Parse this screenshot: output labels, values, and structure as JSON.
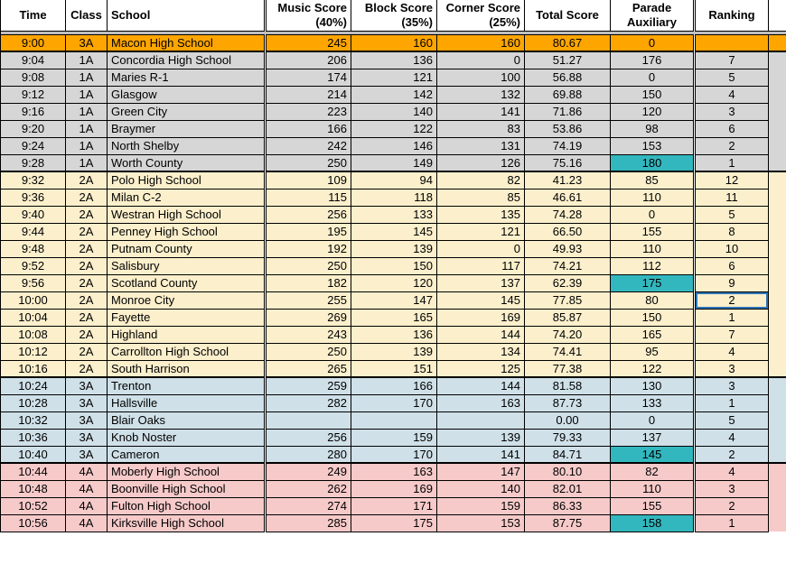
{
  "colors": {
    "groups": {
      "highlight": "#FFA500",
      "1A": "#D6D6D6",
      "2A": "#FBEFCC",
      "3A": "#CFE0E8",
      "4A": "#F7CACA"
    },
    "parade_highlight_teal": "#33B7BE",
    "spacer_gray": "#BFBFBF",
    "selection_blue": "#2E75B6",
    "grid_line": "#000000"
  },
  "table": {
    "columns": [
      {
        "key": "time",
        "label": "Time"
      },
      {
        "key": "class",
        "label": "Class"
      },
      {
        "key": "school",
        "label": "School"
      },
      {
        "key": "music",
        "label": "Music Score\n(40%)"
      },
      {
        "key": "block",
        "label": "Block Score\n(35%)"
      },
      {
        "key": "corner",
        "label": "Corner Score\n(25%)"
      },
      {
        "key": "total",
        "label": "Total Score"
      },
      {
        "key": "parade",
        "label": "Parade Auxiliary"
      },
      {
        "key": "ranking",
        "label": "Ranking"
      },
      {
        "key": "filler",
        "label": ""
      }
    ],
    "rows": [
      {
        "time": "9:00",
        "class": "3A",
        "school": "Macon High School",
        "music": "245",
        "block": "160",
        "corner": "160",
        "total": "80.67",
        "parade": "0",
        "ranking": "",
        "group": "highlight",
        "section_end": true
      },
      {
        "time": "9:04",
        "class": "1A",
        "school": "Concordia High School",
        "music": "206",
        "block": "136",
        "corner": "0",
        "total": "51.27",
        "parade": "176",
        "ranking": "7",
        "group": "1A"
      },
      {
        "time": "9:08",
        "class": "1A",
        "school": "Maries R-1",
        "music": "174",
        "block": "121",
        "corner": "100",
        "total": "56.88",
        "parade": "0",
        "ranking": "5",
        "group": "1A"
      },
      {
        "time": "9:12",
        "class": "1A",
        "school": "Glasgow",
        "music": "214",
        "block": "142",
        "corner": "132",
        "total": "69.88",
        "parade": "150",
        "ranking": "4",
        "group": "1A"
      },
      {
        "time": "9:16",
        "class": "1A",
        "school": "Green City",
        "music": "223",
        "block": "140",
        "corner": "141",
        "total": "71.86",
        "parade": "120",
        "ranking": "3",
        "group": "1A"
      },
      {
        "time": "9:20",
        "class": "1A",
        "school": "Braymer",
        "music": "166",
        "block": "122",
        "corner": "83",
        "total": "53.86",
        "parade": "98",
        "ranking": "6",
        "group": "1A"
      },
      {
        "time": "9:24",
        "class": "1A",
        "school": "North Shelby",
        "music": "242",
        "block": "146",
        "corner": "131",
        "total": "74.19",
        "parade": "153",
        "ranking": "2",
        "group": "1A"
      },
      {
        "time": "9:28",
        "class": "1A",
        "school": "Worth County",
        "music": "250",
        "block": "149",
        "corner": "126",
        "total": "75.16",
        "parade": "180",
        "ranking": "1",
        "group": "1A",
        "parade_teal": true,
        "section_end": true
      },
      {
        "time": "9:32",
        "class": "2A",
        "school": "Polo High School",
        "music": "109",
        "block": "94",
        "corner": "82",
        "total": "41.23",
        "parade": "85",
        "ranking": "12",
        "group": "2A"
      },
      {
        "time": "9:36",
        "class": "2A",
        "school": "Milan C-2",
        "music": "115",
        "block": "118",
        "corner": "85",
        "total": "46.61",
        "parade": "110",
        "ranking": "11",
        "group": "2A"
      },
      {
        "time": "9:40",
        "class": "2A",
        "school": "Westran High School",
        "music": "256",
        "block": "133",
        "corner": "135",
        "total": "74.28",
        "parade": "0",
        "ranking": "5",
        "group": "2A"
      },
      {
        "time": "9:44",
        "class": "2A",
        "school": "Penney High School",
        "music": "195",
        "block": "145",
        "corner": "121",
        "total": "66.50",
        "parade": "155",
        "ranking": "8",
        "group": "2A"
      },
      {
        "time": "9:48",
        "class": "2A",
        "school": "Putnam County",
        "music": "192",
        "block": "139",
        "corner": "0",
        "total": "49.93",
        "parade": "110",
        "ranking": "10",
        "group": "2A"
      },
      {
        "time": "9:52",
        "class": "2A",
        "school": "Salisbury",
        "music": "250",
        "block": "150",
        "corner": "117",
        "total": "74.21",
        "parade": "112",
        "ranking": "6",
        "group": "2A"
      },
      {
        "time": "9:56",
        "class": "2A",
        "school": "Scotland County",
        "music": "182",
        "block": "120",
        "corner": "137",
        "total": "62.39",
        "parade": "175",
        "ranking": "9",
        "group": "2A",
        "parade_teal": true
      },
      {
        "time": "10:00",
        "class": "2A",
        "school": "Monroe City",
        "music": "255",
        "block": "147",
        "corner": "145",
        "total": "77.85",
        "parade": "80",
        "ranking": "2",
        "group": "2A",
        "selected": true
      },
      {
        "time": "10:04",
        "class": "2A",
        "school": "Fayette",
        "music": "269",
        "block": "165",
        "corner": "169",
        "total": "85.87",
        "parade": "150",
        "ranking": "1",
        "group": "2A"
      },
      {
        "time": "10:08",
        "class": "2A",
        "school": "Highland",
        "music": "243",
        "block": "136",
        "corner": "144",
        "total": "74.20",
        "parade": "165",
        "ranking": "7",
        "group": "2A"
      },
      {
        "time": "10:12",
        "class": "2A",
        "school": "Carrollton High School",
        "music": "250",
        "block": "139",
        "corner": "134",
        "total": "74.41",
        "parade": "95",
        "ranking": "4",
        "group": "2A"
      },
      {
        "time": "10:16",
        "class": "2A",
        "school": "South Harrison",
        "music": "265",
        "block": "151",
        "corner": "125",
        "total": "77.38",
        "parade": "122",
        "ranking": "3",
        "group": "2A",
        "section_end": true
      },
      {
        "time": "10:24",
        "class": "3A",
        "school": "Trenton",
        "music": "259",
        "block": "166",
        "corner": "144",
        "total": "81.58",
        "parade": "130",
        "ranking": "3",
        "group": "3A"
      },
      {
        "time": "10:28",
        "class": "3A",
        "school": "Hallsville",
        "music": "282",
        "block": "170",
        "corner": "163",
        "total": "87.73",
        "parade": "133",
        "ranking": "1",
        "group": "3A"
      },
      {
        "time": "10:32",
        "class": "3A",
        "school": "Blair Oaks",
        "music": "",
        "block": "",
        "corner": "",
        "total": "0.00",
        "parade": "0",
        "ranking": "5",
        "group": "3A"
      },
      {
        "time": "10:36",
        "class": "3A",
        "school": "Knob Noster",
        "music": "256",
        "block": "159",
        "corner": "139",
        "total": "79.33",
        "parade": "137",
        "ranking": "4",
        "group": "3A"
      },
      {
        "time": "10:40",
        "class": "3A",
        "school": "Cameron",
        "music": "280",
        "block": "170",
        "corner": "141",
        "total": "84.71",
        "parade": "145",
        "ranking": "2",
        "group": "3A",
        "parade_teal": true,
        "section_end": true
      },
      {
        "time": "10:44",
        "class": "4A",
        "school": "Moberly High School",
        "music": "249",
        "block": "163",
        "corner": "147",
        "total": "80.10",
        "parade": "82",
        "ranking": "4",
        "group": "4A"
      },
      {
        "time": "10:48",
        "class": "4A",
        "school": "Boonville High School",
        "music": "262",
        "block": "169",
        "corner": "140",
        "total": "82.01",
        "parade": "110",
        "ranking": "3",
        "group": "4A"
      },
      {
        "time": "10:52",
        "class": "4A",
        "school": "Fulton High School",
        "music": "274",
        "block": "171",
        "corner": "159",
        "total": "86.33",
        "parade": "155",
        "ranking": "2",
        "group": "4A"
      },
      {
        "time": "10:56",
        "class": "4A",
        "school": "Kirksville High School",
        "music": "285",
        "block": "175",
        "corner": "153",
        "total": "87.75",
        "parade": "158",
        "ranking": "1",
        "group": "4A",
        "parade_teal": true
      }
    ]
  }
}
